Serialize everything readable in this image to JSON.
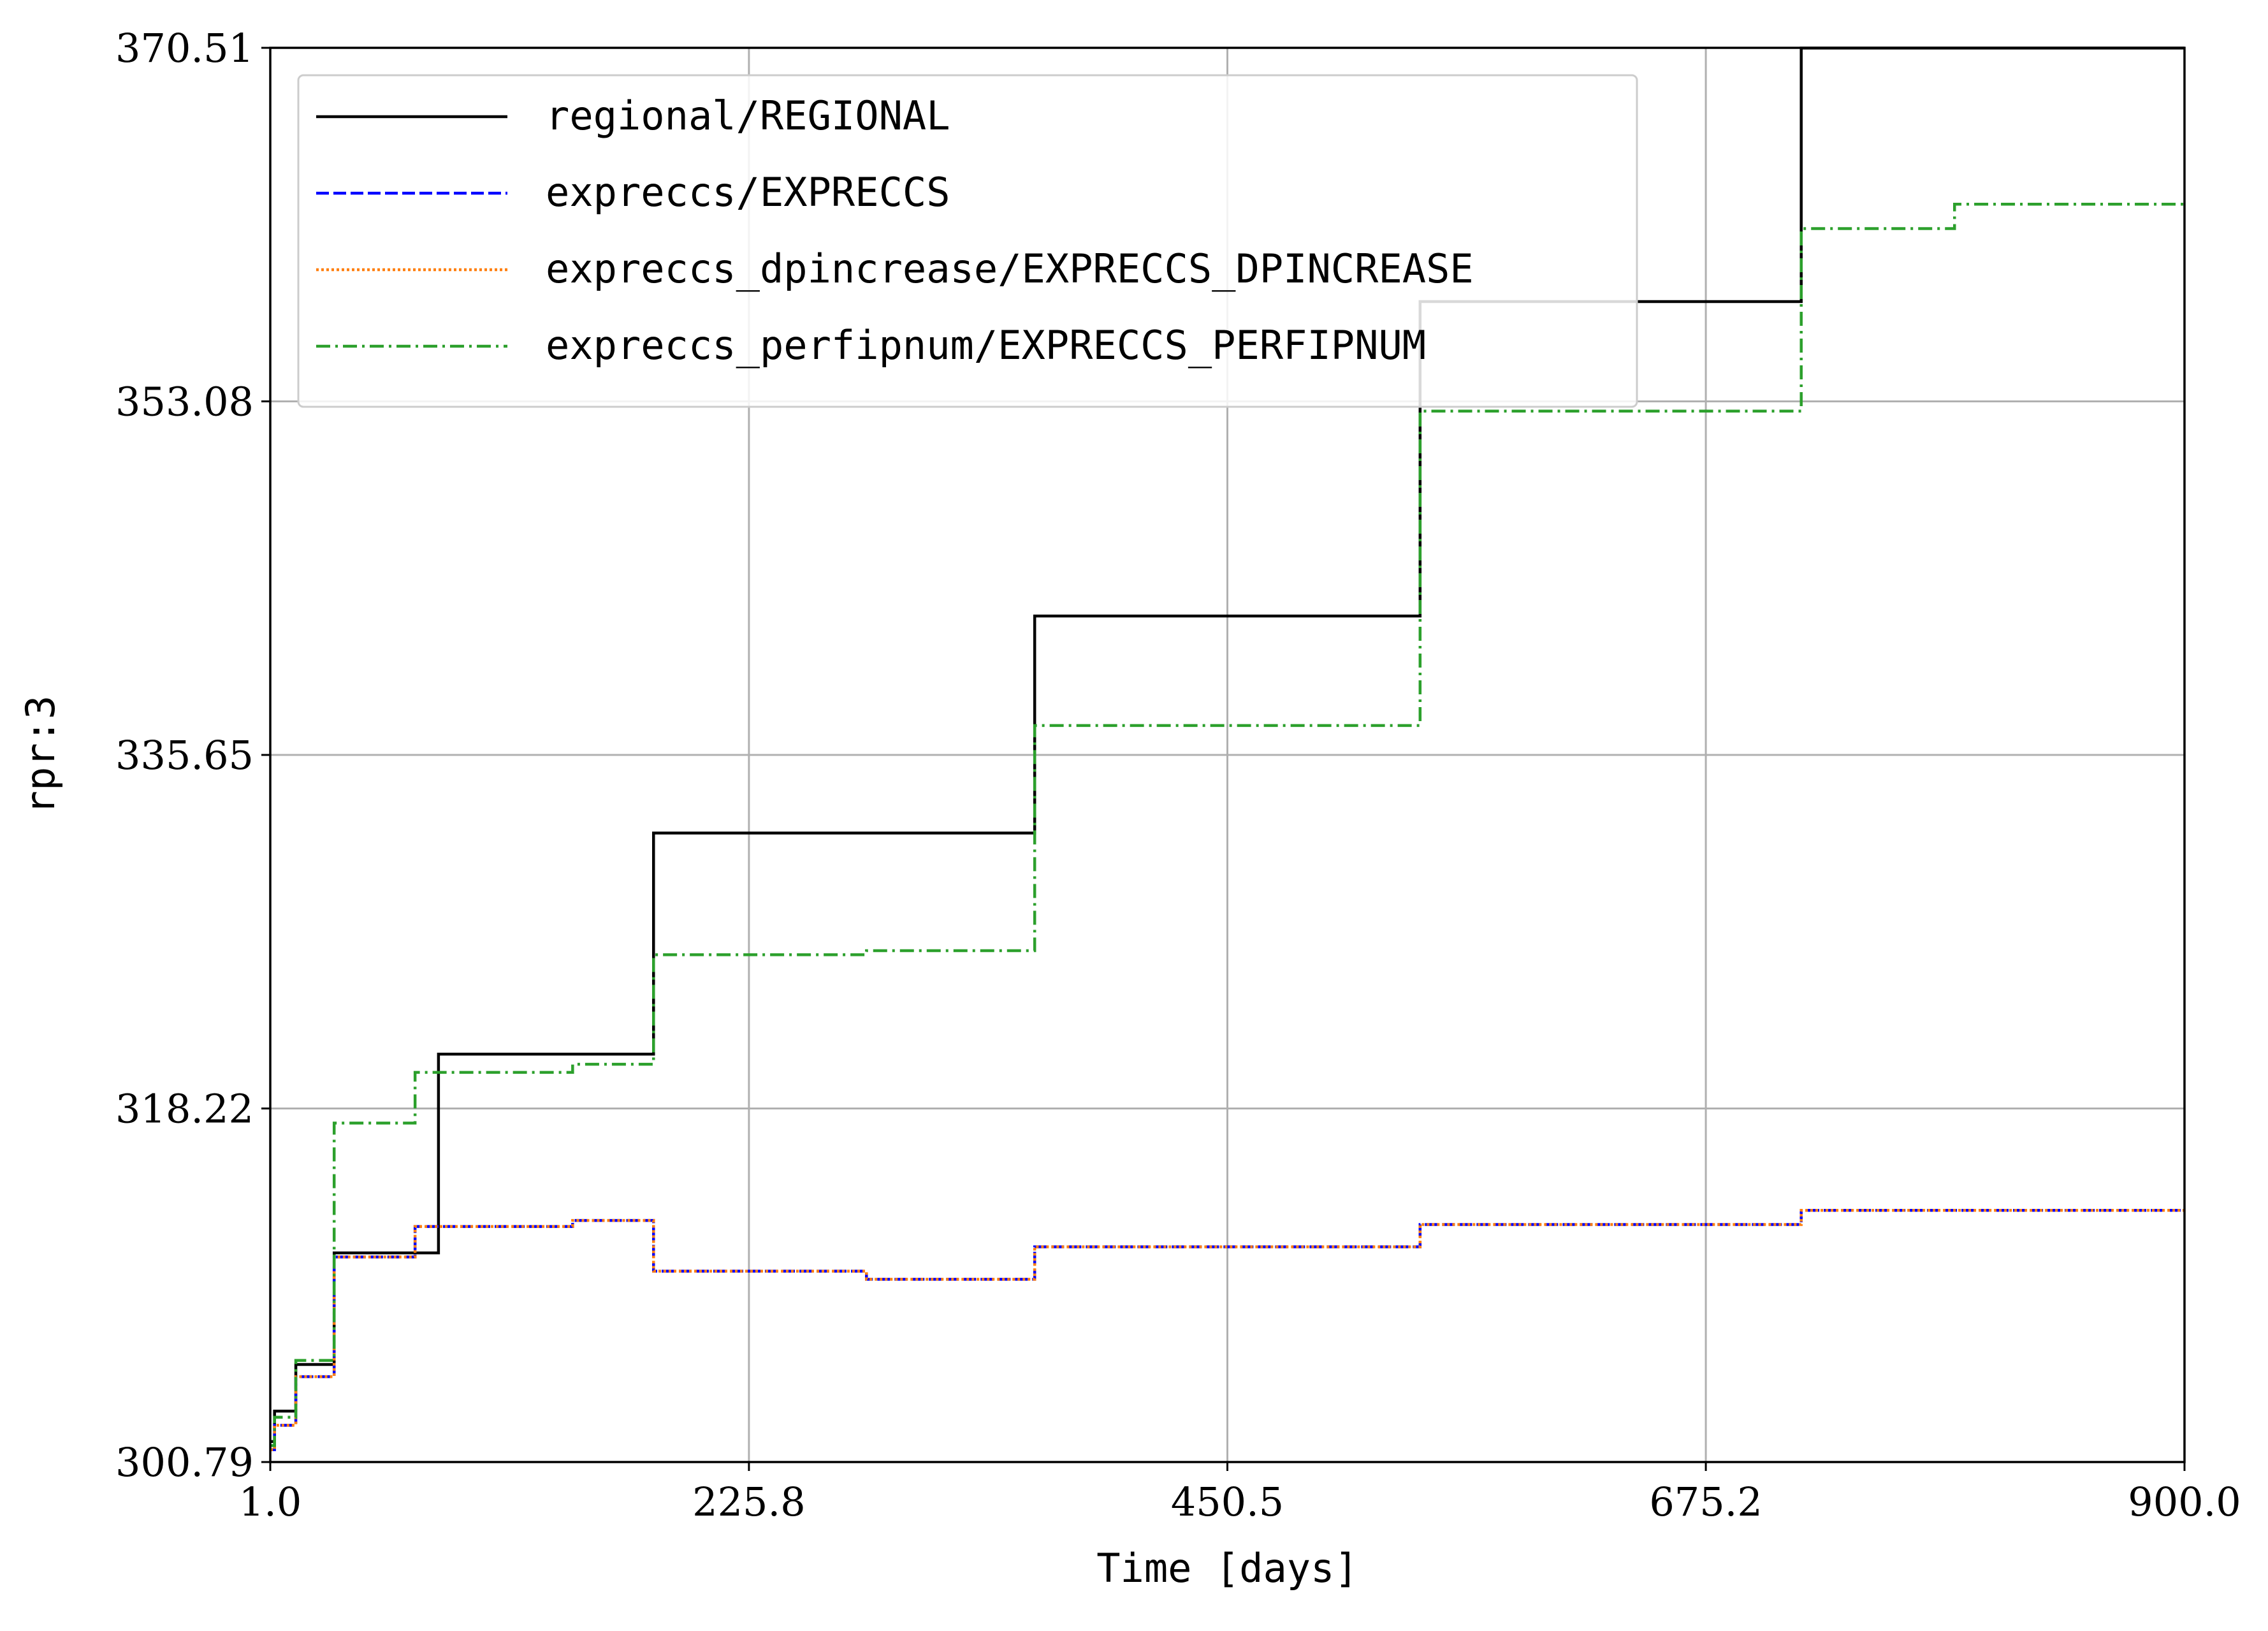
{
  "chart_data": {
    "type": "line",
    "title": "",
    "xlabel": "Time [days]",
    "ylabel": "rpr:3",
    "xlim": [
      1.0,
      900.0
    ],
    "ylim": [
      300.79,
      370.51
    ],
    "xticks": [
      1.0,
      225.8,
      450.5,
      675.2,
      900.0
    ],
    "xtick_labels": [
      "1.0",
      "225.8",
      "450.5",
      "675.2",
      "900.0"
    ],
    "yticks": [
      300.79,
      318.22,
      335.65,
      353.08,
      370.51
    ],
    "ytick_labels": [
      "300.79",
      "318.22",
      "335.65",
      "353.08",
      "370.51"
    ],
    "grid": true,
    "legend_position": "upper-left",
    "step": "post",
    "series": [
      {
        "name": "regional/REGIONAL",
        "color": "#000000",
        "dash": "solid",
        "x": [
          1,
          3,
          13,
          31,
          80,
          181,
          360,
          541,
          720,
          900
        ],
        "y": [
          301.8,
          303.3,
          305.6,
          311.1,
          320.9,
          331.8,
          342.5,
          358.0,
          370.5,
          370.5
        ]
      },
      {
        "name": "expreccs/EXPRECCS",
        "color": "#0000ff",
        "dash": "dashed",
        "x": [
          1,
          3,
          13,
          31,
          69,
          143,
          181,
          281,
          360,
          541,
          720,
          900
        ],
        "y": [
          301.4,
          302.6,
          305.0,
          310.9,
          312.4,
          312.7,
          310.2,
          309.8,
          311.4,
          312.5,
          313.2,
          313.2
        ]
      },
      {
        "name": "expreccs_dpincrease/EXPRECCS_DPINCREASE",
        "color": "#ff7f0e",
        "dash": "dotted",
        "x": [
          1,
          3,
          13,
          31,
          69,
          143,
          181,
          281,
          360,
          541,
          720,
          900
        ],
        "y": [
          301.4,
          302.6,
          305.0,
          310.9,
          312.4,
          312.7,
          310.2,
          309.8,
          311.4,
          312.5,
          313.2,
          313.2
        ]
      },
      {
        "name": "expreccs_perfipnum/EXPRECCS_PERFIPNUM",
        "color": "#2ca02c",
        "dash": "dashdot",
        "x": [
          1,
          3,
          13,
          31,
          69,
          143,
          181,
          281,
          360,
          541,
          720,
          792,
          900
        ],
        "y": [
          301.6,
          303.0,
          305.8,
          317.5,
          320.0,
          320.4,
          325.8,
          326.0,
          337.1,
          352.6,
          361.6,
          362.8,
          362.8
        ]
      }
    ]
  }
}
